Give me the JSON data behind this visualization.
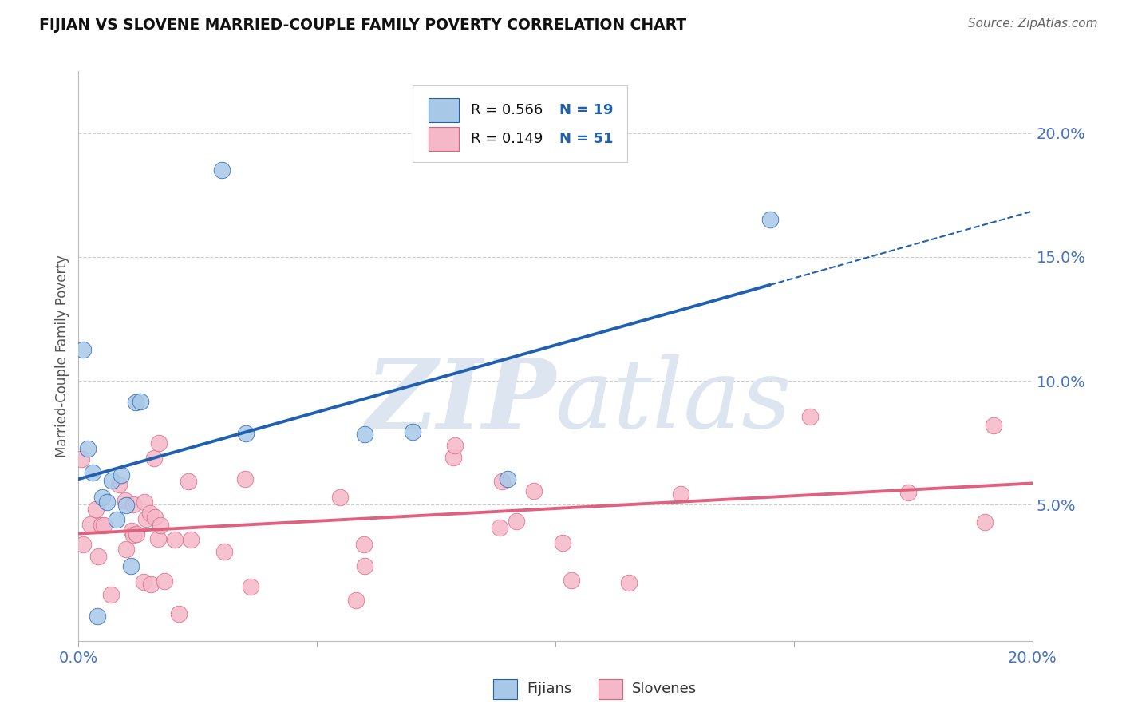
{
  "title": "FIJIAN VS SLOVENE MARRIED-COUPLE FAMILY POVERTY CORRELATION CHART",
  "source": "Source: ZipAtlas.com",
  "ylabel": "Married-Couple Family Poverty",
  "xlim": [
    0.0,
    0.2
  ],
  "ylim": [
    -0.005,
    0.225
  ],
  "yticks": [
    0.05,
    0.1,
    0.15,
    0.2
  ],
  "ytick_labels": [
    "5.0%",
    "10.0%",
    "15.0%",
    "20.0%"
  ],
  "xtick_labels": [
    "0.0%",
    "",
    "",
    "",
    "20.0%"
  ],
  "fijian_color": "#a8c8e8",
  "slovene_color": "#f5b8c8",
  "fijian_R": 0.566,
  "fijian_N": 19,
  "slovene_R": 0.149,
  "slovene_N": 51,
  "fijian_line_color": "#2060b0",
  "slovene_line_color": "#e06080",
  "background_color": "#ffffff",
  "grid_color": "#cccccc",
  "watermark_color": "#dde6f0",
  "legend_text_color": "#4472c4",
  "legend_n_color": "#2060b0"
}
